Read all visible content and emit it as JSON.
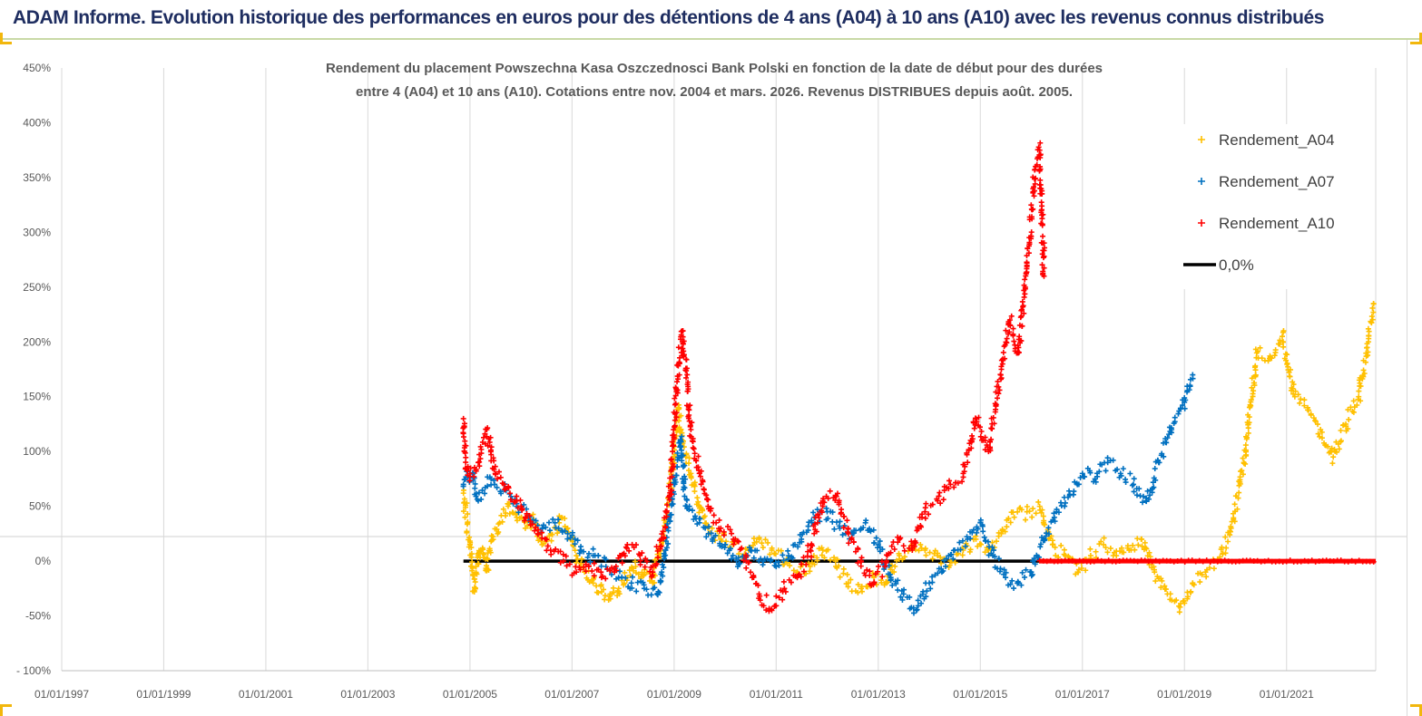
{
  "header": {
    "title": "ADAM Informe. Evolution historique des performances en euros pour des détentions de 4 ans (A04) à 10 ans (A10) avec les revenus connus distribués"
  },
  "chart_data": {
    "type": "scatter",
    "title_lines": [
      "Rendement du placement Powszechna Kasa Oszczednosci Bank Polski en fonction de la date de début pour des durées",
      "entre 4 (A04) et 10 ans (A10). Cotations entre nov. 2004 et mars. 2026. Revenus DISTRIBUES depuis août. 2005."
    ],
    "xlabel": "",
    "ylabel": "",
    "x_range": [
      "1997-01-01",
      "2022-10-01"
    ],
    "x_tick_labels": [
      "01/01/1997",
      "01/01/1999",
      "01/01/2001",
      "01/01/2003",
      "01/01/2005",
      "01/01/2007",
      "01/01/2009",
      "01/01/2011",
      "01/01/2013",
      "01/01/2015",
      "01/01/2017",
      "01/01/2019",
      "01/01/2021"
    ],
    "y_range_percent": [
      -100,
      450
    ],
    "y_ticks_percent": [
      -100,
      -50,
      0,
      50,
      100,
      150,
      200,
      250,
      300,
      350,
      400,
      450
    ],
    "y_tick_labels": [
      "- 100%",
      "-50%",
      "0%",
      "50%",
      "100%",
      "150%",
      "200%",
      "250%",
      "300%",
      "350%",
      "400%",
      "450%"
    ],
    "gridlines": "vertical",
    "legend_position": "top-right",
    "marker": "plus",
    "series": [
      {
        "name": "Rendement_A04",
        "color": "#ffc000",
        "points": [
          [
            "2004-11-15",
            62
          ],
          [
            "2005-01-01",
            15
          ],
          [
            "2005-02-01",
            -28
          ],
          [
            "2005-03-01",
            5
          ],
          [
            "2005-04-01",
            12
          ],
          [
            "2005-05-01",
            -8
          ],
          [
            "2005-06-01",
            18
          ],
          [
            "2005-08-01",
            35
          ],
          [
            "2005-10-01",
            50
          ],
          [
            "2005-12-01",
            40
          ],
          [
            "2006-02-01",
            30
          ],
          [
            "2006-04-01",
            38
          ],
          [
            "2006-06-01",
            15
          ],
          [
            "2006-08-01",
            25
          ],
          [
            "2006-10-01",
            35
          ],
          [
            "2006-12-01",
            30
          ],
          [
            "2007-02-01",
            5
          ],
          [
            "2007-04-01",
            -10
          ],
          [
            "2007-06-01",
            -20
          ],
          [
            "2007-08-01",
            -28
          ],
          [
            "2007-10-01",
            -30
          ],
          [
            "2007-12-01",
            -25
          ],
          [
            "2008-02-01",
            -15
          ],
          [
            "2008-04-01",
            -5
          ],
          [
            "2008-06-01",
            -12
          ],
          [
            "2008-08-01",
            -20
          ],
          [
            "2008-10-01",
            15
          ],
          [
            "2008-12-01",
            60
          ],
          [
            "2009-02-01",
            140
          ],
          [
            "2009-03-01",
            110
          ],
          [
            "2009-05-01",
            80
          ],
          [
            "2009-07-01",
            50
          ],
          [
            "2009-09-01",
            30
          ],
          [
            "2009-12-01",
            20
          ],
          [
            "2010-03-01",
            15
          ],
          [
            "2010-06-01",
            5
          ],
          [
            "2010-09-01",
            20
          ],
          [
            "2010-12-01",
            10
          ],
          [
            "2011-03-01",
            0
          ],
          [
            "2011-06-01",
            -10
          ],
          [
            "2011-09-01",
            -5
          ],
          [
            "2011-12-01",
            10
          ],
          [
            "2012-03-01",
            0
          ],
          [
            "2012-06-01",
            -20
          ],
          [
            "2012-09-01",
            -25
          ],
          [
            "2012-12-01",
            -15
          ],
          [
            "2013-03-01",
            -20
          ],
          [
            "2013-06-01",
            5
          ],
          [
            "2013-09-01",
            15
          ],
          [
            "2013-12-01",
            10
          ],
          [
            "2014-03-01",
            5
          ],
          [
            "2014-06-01",
            0
          ],
          [
            "2014-09-01",
            10
          ],
          [
            "2014-12-01",
            20
          ],
          [
            "2015-03-01",
            10
          ],
          [
            "2015-06-01",
            25
          ],
          [
            "2015-09-01",
            40
          ],
          [
            "2015-12-01",
            45
          ],
          [
            "2016-03-01",
            50
          ],
          [
            "2016-06-01",
            15
          ],
          [
            "2016-09-01",
            5
          ],
          [
            "2016-12-01",
            -10
          ],
          [
            "2017-03-01",
            5
          ],
          [
            "2017-06-01",
            15
          ],
          [
            "2017-09-01",
            5
          ],
          [
            "2017-12-01",
            10
          ],
          [
            "2018-03-01",
            20
          ],
          [
            "2018-06-01",
            -10
          ],
          [
            "2018-09-01",
            -30
          ],
          [
            "2018-12-01",
            -42
          ],
          [
            "2019-03-01",
            -20
          ],
          [
            "2019-06-01",
            -10
          ],
          [
            "2019-09-01",
            0
          ],
          [
            "2019-12-01",
            30
          ],
          [
            "2020-03-01",
            90
          ],
          [
            "2020-06-01",
            190
          ],
          [
            "2020-09-01",
            185
          ],
          [
            "2020-12-01",
            205
          ],
          [
            "2021-03-01",
            150
          ],
          [
            "2021-06-01",
            140
          ],
          [
            "2021-09-01",
            120
          ],
          [
            "2021-12-01",
            95
          ],
          [
            "2022-03-01",
            125
          ],
          [
            "2022-06-01",
            150
          ],
          [
            "2022-08-01",
            195
          ],
          [
            "2022-09-15",
            235
          ]
        ]
      },
      {
        "name": "Rendement_A07",
        "color": "#0070c0",
        "points": [
          [
            "2004-11-15",
            70
          ],
          [
            "2005-01-01",
            80
          ],
          [
            "2005-03-01",
            55
          ],
          [
            "2005-06-01",
            75
          ],
          [
            "2005-09-01",
            65
          ],
          [
            "2005-12-01",
            50
          ],
          [
            "2006-03-01",
            40
          ],
          [
            "2006-06-01",
            30
          ],
          [
            "2006-09-01",
            35
          ],
          [
            "2006-12-01",
            25
          ],
          [
            "2007-03-01",
            10
          ],
          [
            "2007-06-01",
            5
          ],
          [
            "2007-09-01",
            -5
          ],
          [
            "2007-12-01",
            -15
          ],
          [
            "2008-03-01",
            -20
          ],
          [
            "2008-06-01",
            -25
          ],
          [
            "2008-09-01",
            -30
          ],
          [
            "2008-11-01",
            10
          ],
          [
            "2009-01-01",
            70
          ],
          [
            "2009-02-15",
            110
          ],
          [
            "2009-04-01",
            50
          ],
          [
            "2009-07-01",
            35
          ],
          [
            "2009-10-01",
            20
          ],
          [
            "2010-01-01",
            15
          ],
          [
            "2010-04-01",
            -5
          ],
          [
            "2010-07-01",
            10
          ],
          [
            "2010-10-01",
            0
          ],
          [
            "2011-01-01",
            -5
          ],
          [
            "2011-04-01",
            5
          ],
          [
            "2011-07-01",
            20
          ],
          [
            "2011-10-01",
            40
          ],
          [
            "2012-01-01",
            45
          ],
          [
            "2012-04-01",
            30
          ],
          [
            "2012-07-01",
            25
          ],
          [
            "2012-10-01",
            35
          ],
          [
            "2013-01-01",
            15
          ],
          [
            "2013-04-01",
            -15
          ],
          [
            "2013-07-01",
            -30
          ],
          [
            "2013-10-01",
            -45
          ],
          [
            "2014-01-01",
            -20
          ],
          [
            "2014-04-01",
            -10
          ],
          [
            "2014-07-01",
            10
          ],
          [
            "2014-10-01",
            20
          ],
          [
            "2015-01-01",
            35
          ],
          [
            "2015-04-01",
            5
          ],
          [
            "2015-07-01",
            -15
          ],
          [
            "2015-10-01",
            -20
          ],
          [
            "2016-01-01",
            -10
          ],
          [
            "2016-04-01",
            20
          ],
          [
            "2016-07-01",
            45
          ],
          [
            "2016-10-01",
            60
          ],
          [
            "2017-01-01",
            80
          ],
          [
            "2017-04-01",
            75
          ],
          [
            "2017-07-01",
            90
          ],
          [
            "2017-10-01",
            80
          ],
          [
            "2018-01-01",
            70
          ],
          [
            "2018-04-01",
            55
          ],
          [
            "2018-07-01",
            90
          ],
          [
            "2018-10-01",
            120
          ],
          [
            "2019-01-01",
            145
          ],
          [
            "2019-03-01",
            170
          ]
        ]
      },
      {
        "name": "Rendement_A10",
        "color": "#ff0000",
        "points": [
          [
            "2004-11-15",
            130
          ],
          [
            "2004-12-01",
            85
          ],
          [
            "2005-01-01",
            80
          ],
          [
            "2005-03-01",
            90
          ],
          [
            "2005-05-01",
            120
          ],
          [
            "2005-07-01",
            80
          ],
          [
            "2005-09-01",
            70
          ],
          [
            "2005-12-01",
            55
          ],
          [
            "2006-02-01",
            40
          ],
          [
            "2006-05-01",
            25
          ],
          [
            "2006-08-01",
            10
          ],
          [
            "2006-11-01",
            0
          ],
          [
            "2007-02-01",
            -10
          ],
          [
            "2007-05-01",
            -5
          ],
          [
            "2007-08-01",
            -15
          ],
          [
            "2007-11-01",
            -10
          ],
          [
            "2008-02-01",
            15
          ],
          [
            "2008-05-01",
            5
          ],
          [
            "2008-08-01",
            -10
          ],
          [
            "2008-10-01",
            20
          ],
          [
            "2008-12-01",
            60
          ],
          [
            "2009-02-01",
            180
          ],
          [
            "2009-03-01",
            210
          ],
          [
            "2009-05-01",
            120
          ],
          [
            "2009-07-01",
            80
          ],
          [
            "2009-09-01",
            50
          ],
          [
            "2009-12-01",
            30
          ],
          [
            "2010-03-01",
            20
          ],
          [
            "2010-06-01",
            0
          ],
          [
            "2010-09-01",
            -30
          ],
          [
            "2010-12-01",
            -45
          ],
          [
            "2011-03-01",
            -25
          ],
          [
            "2011-06-01",
            -15
          ],
          [
            "2011-09-01",
            10
          ],
          [
            "2011-12-01",
            55
          ],
          [
            "2012-03-01",
            60
          ],
          [
            "2012-06-01",
            25
          ],
          [
            "2012-09-01",
            0
          ],
          [
            "2012-12-01",
            -20
          ],
          [
            "2013-03-01",
            0
          ],
          [
            "2013-06-01",
            20
          ],
          [
            "2013-09-01",
            10
          ],
          [
            "2013-12-01",
            45
          ],
          [
            "2014-03-01",
            55
          ],
          [
            "2014-06-01",
            70
          ],
          [
            "2014-09-01",
            80
          ],
          [
            "2014-12-01",
            130
          ],
          [
            "2015-03-01",
            100
          ],
          [
            "2015-06-01",
            175
          ],
          [
            "2015-08-01",
            220
          ],
          [
            "2015-10-01",
            190
          ],
          [
            "2015-12-01",
            270
          ],
          [
            "2016-02-01",
            360
          ],
          [
            "2016-03-01",
            375
          ],
          [
            "2016-04-01",
            260
          ]
        ]
      },
      {
        "name": "0,0%",
        "color": "#000000",
        "style": "line",
        "points": [
          [
            "2004-11-15",
            0
          ],
          [
            "2016-03-01",
            0
          ]
        ]
      }
    ],
    "zero_marks_after": {
      "color": "#ff0000",
      "from": "2016-03-01",
      "to": "2022-10-01",
      "value": 0
    }
  }
}
